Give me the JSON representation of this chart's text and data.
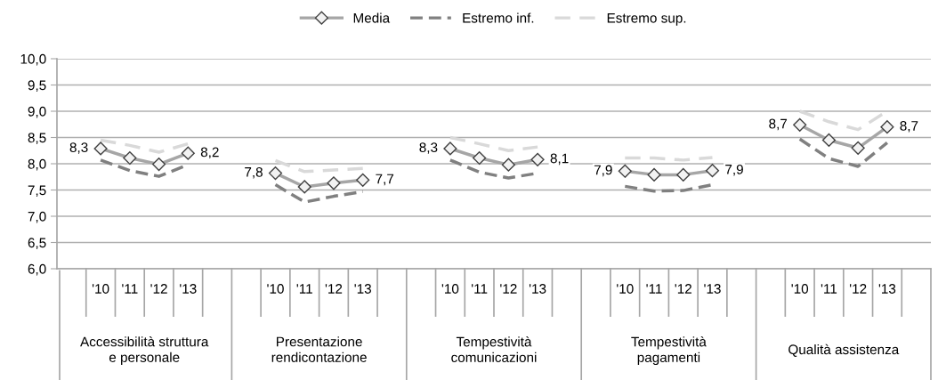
{
  "chart_data": {
    "type": "line",
    "categories": [
      null,
      "'10",
      "'11",
      "'12",
      "'13",
      null,
      null,
      "'10",
      "'11",
      "'12",
      "'13",
      null,
      null,
      "'10",
      "'11",
      "'12",
      "'13",
      null,
      null,
      "'10",
      "'11",
      "'12",
      "'13",
      null,
      null,
      "'10",
      "'11",
      "'12",
      "'13",
      null
    ],
    "series": [
      {
        "name": "Media",
        "color": "#a6a6a6",
        "marker": "diamond",
        "line_style": "solid",
        "values": [
          null,
          8.29,
          8.11,
          7.99,
          8.2,
          null,
          null,
          7.82,
          7.56,
          7.63,
          7.69,
          null,
          null,
          8.29,
          8.11,
          7.98,
          8.08,
          null,
          null,
          7.86,
          7.79,
          7.79,
          7.87,
          null,
          null,
          8.74,
          8.45,
          8.3,
          8.7,
          null
        ],
        "value_labels": [
          null,
          "8,3",
          null,
          null,
          "8,2",
          null,
          null,
          "7,8",
          null,
          null,
          "7,7",
          null,
          null,
          "8,3",
          null,
          null,
          "8,1",
          null,
          null,
          "7,9",
          null,
          null,
          "7,9",
          null,
          null,
          "8,7",
          null,
          null,
          "8,7",
          null
        ]
      },
      {
        "name": "Estremo inf.",
        "color": "#808080",
        "marker": "none",
        "line_style": "dashed",
        "values": [
          null,
          8.07,
          7.87,
          7.76,
          7.98,
          null,
          null,
          7.6,
          7.27,
          7.38,
          7.47,
          null,
          null,
          8.07,
          7.84,
          7.73,
          7.82,
          null,
          null,
          7.57,
          7.48,
          7.49,
          7.6,
          null,
          null,
          8.47,
          8.1,
          7.95,
          8.4,
          null
        ]
      },
      {
        "name": "Estremo sup.",
        "color": "#d9d9d9",
        "marker": "none",
        "line_style": "dashed",
        "values": [
          null,
          8.45,
          8.35,
          8.22,
          8.38,
          null,
          null,
          8.06,
          7.85,
          7.88,
          7.91,
          null,
          null,
          8.5,
          8.38,
          8.25,
          8.32,
          null,
          null,
          8.11,
          8.11,
          8.07,
          8.12,
          null,
          null,
          9.0,
          8.8,
          8.65,
          9.0,
          null
        ]
      }
    ],
    "ylim": [
      6,
      10
    ],
    "yticks": [
      {
        "value": 6,
        "label": "6,0"
      },
      {
        "value": 6.5,
        "label": "6,5"
      },
      {
        "value": 7,
        "label": "7,0"
      },
      {
        "value": 7.5,
        "label": "7,5"
      },
      {
        "value": 8,
        "label": "8,0"
      },
      {
        "value": 8.5,
        "label": "8,5"
      },
      {
        "value": 9,
        "label": "9,0"
      },
      {
        "value": 9.5,
        "label": "9,5"
      },
      {
        "value": 10,
        "label": "10,0"
      }
    ],
    "grid": "y",
    "legend": "top",
    "annotations": [
      "Accessibilità struttura\ne personale",
      "Presentazione\nrendicontazione",
      "Tempestività\ncomunicazioni",
      "Tempestività\npagamenti",
      "Qualità assistenza"
    ]
  }
}
